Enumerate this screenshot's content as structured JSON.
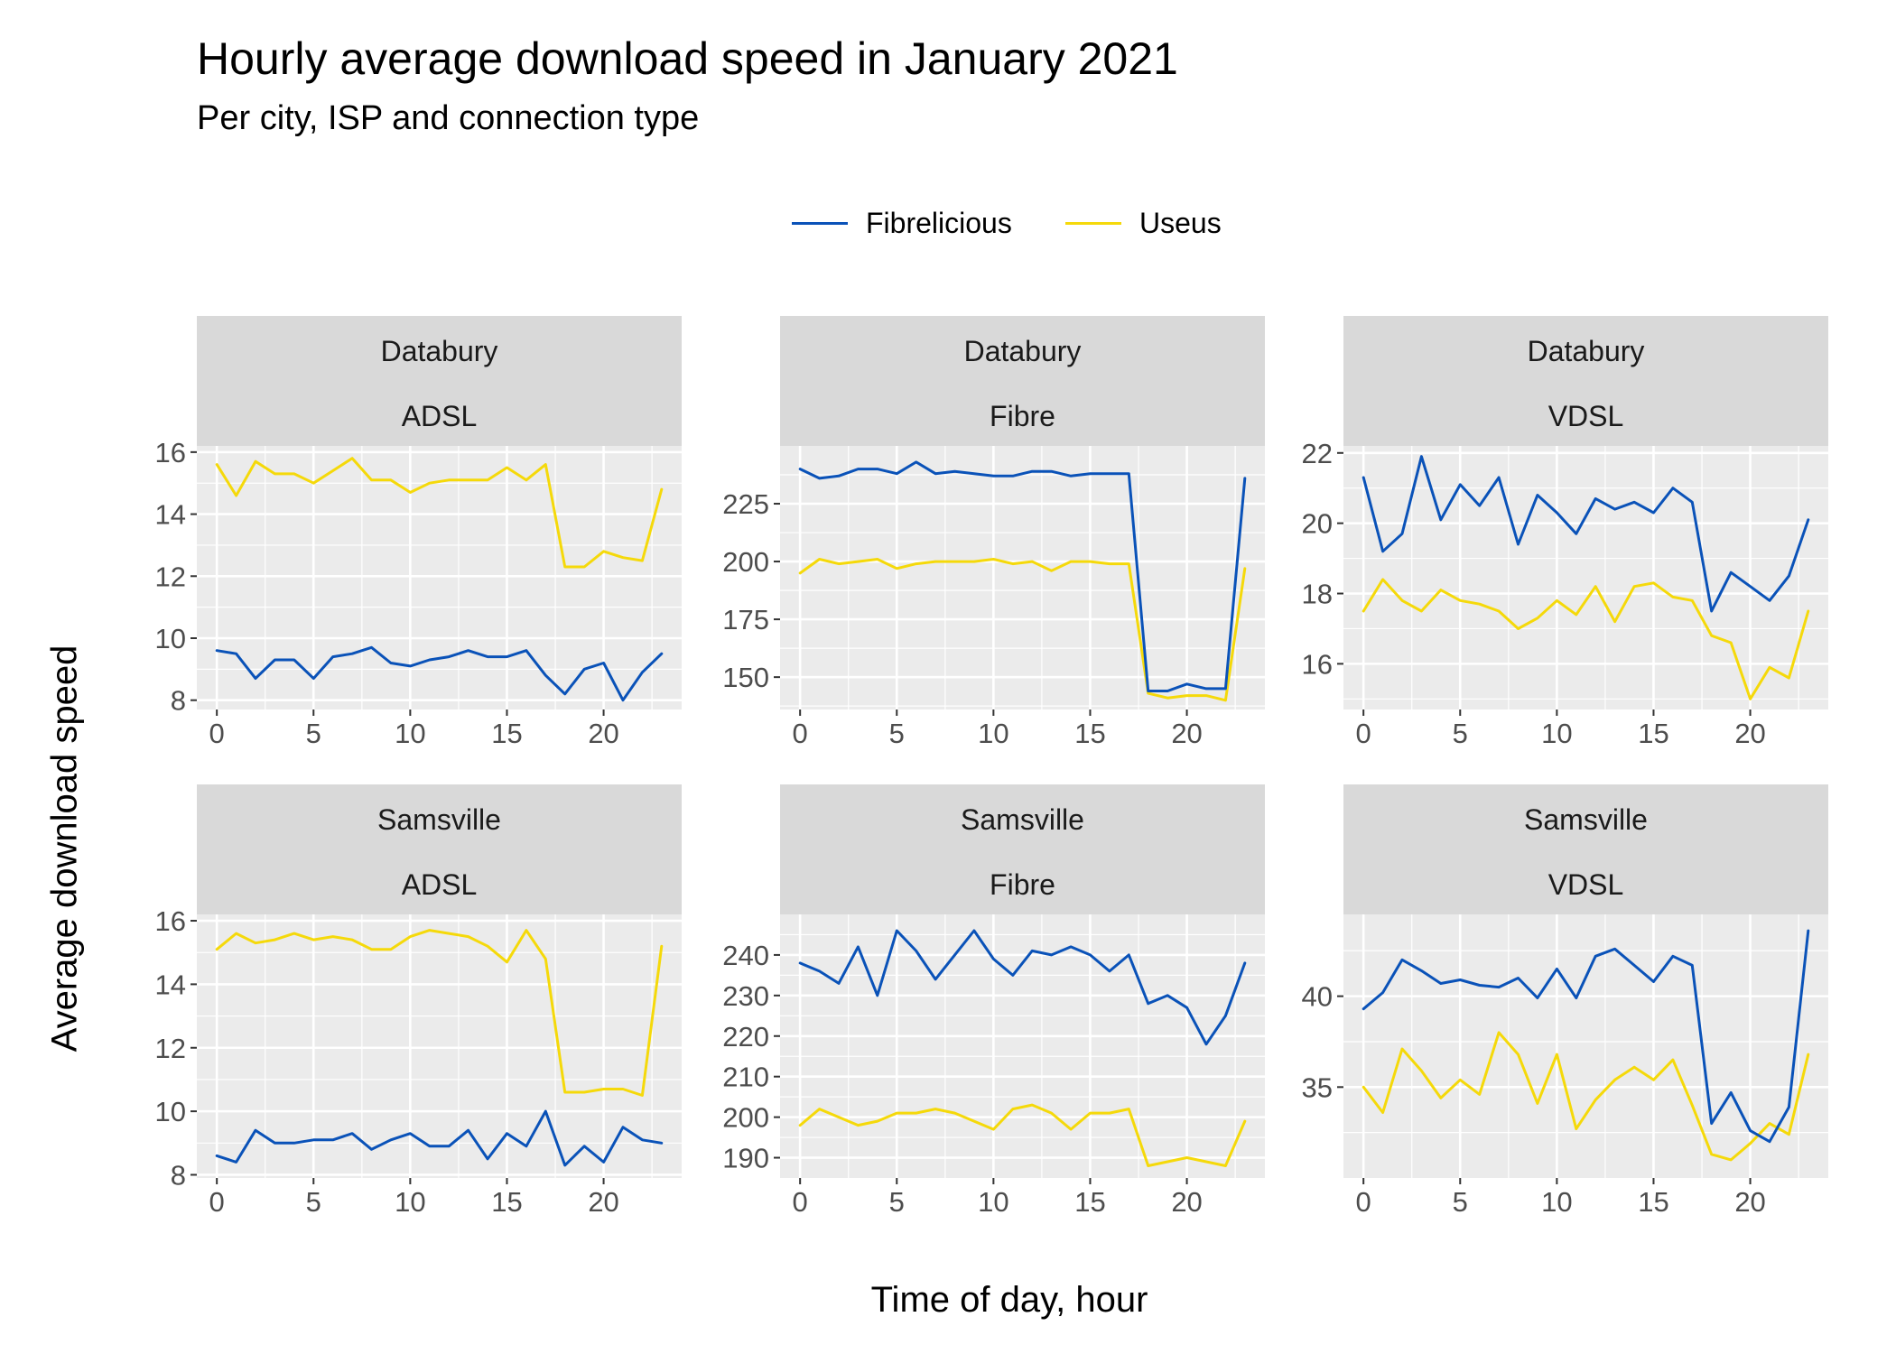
{
  "title": "Hourly average download speed in January 2021",
  "subtitle": "Per city, ISP and connection type",
  "colors": {
    "Fibrelicious": "#0a52b8",
    "Useus": "#f5d90a"
  },
  "legend": [
    {
      "label": "Fibrelicious",
      "color": "#0a52b8"
    },
    {
      "label": "Useus",
      "color": "#f5d90a"
    }
  ],
  "xlabel": "Time of day, hour",
  "ylabel": "Average download speed",
  "chart_data": [
    {
      "type": "line",
      "strip": [
        "Databury",
        "ADSL"
      ],
      "xlim": [
        0,
        23
      ],
      "xticks": [
        0,
        5,
        10,
        15,
        20
      ],
      "ylim": [
        7.7,
        16.2
      ],
      "yticks": [
        8,
        10,
        12,
        14,
        16
      ],
      "x": [
        0,
        1,
        2,
        3,
        4,
        5,
        6,
        7,
        8,
        9,
        10,
        11,
        12,
        13,
        14,
        15,
        16,
        17,
        18,
        19,
        20,
        21,
        22,
        23
      ],
      "series": [
        {
          "name": "Fibrelicious",
          "values": [
            9.6,
            9.5,
            8.7,
            9.3,
            9.3,
            8.7,
            9.4,
            9.5,
            9.7,
            9.2,
            9.1,
            9.3,
            9.4,
            9.6,
            9.4,
            9.4,
            9.6,
            8.8,
            8.2,
            9.0,
            9.2,
            8.0,
            8.9,
            9.5
          ]
        },
        {
          "name": "Useus",
          "values": [
            15.6,
            14.6,
            15.7,
            15.3,
            15.3,
            15.0,
            15.4,
            15.8,
            15.1,
            15.1,
            14.7,
            15.0,
            15.1,
            15.1,
            15.1,
            15.5,
            15.1,
            15.6,
            12.3,
            12.3,
            12.8,
            12.6,
            12.5,
            14.8
          ]
        }
      ]
    },
    {
      "type": "line",
      "strip": [
        "Databury",
        "Fibre"
      ],
      "xlim": [
        0,
        23
      ],
      "xticks": [
        0,
        5,
        10,
        15,
        20
      ],
      "ylim": [
        136,
        250
      ],
      "yticks": [
        150,
        175,
        200,
        225
      ],
      "x": [
        0,
        1,
        2,
        3,
        4,
        5,
        6,
        7,
        8,
        9,
        10,
        11,
        12,
        13,
        14,
        15,
        16,
        17,
        18,
        19,
        20,
        21,
        22,
        23
      ],
      "series": [
        {
          "name": "Fibrelicious",
          "values": [
            240,
            236,
            237,
            240,
            240,
            238,
            243,
            238,
            239,
            238,
            237,
            237,
            239,
            239,
            237,
            238,
            238,
            238,
            144,
            144,
            147,
            145,
            145,
            236
          ]
        },
        {
          "name": "Useus",
          "values": [
            195,
            201,
            199,
            200,
            201,
            197,
            199,
            200,
            200,
            200,
            201,
            199,
            200,
            196,
            200,
            200,
            199,
            199,
            143,
            141,
            142,
            142,
            140,
            197
          ]
        }
      ]
    },
    {
      "type": "line",
      "strip": [
        "Databury",
        "VDSL"
      ],
      "xlim": [
        0,
        23
      ],
      "xticks": [
        0,
        5,
        10,
        15,
        20
      ],
      "ylim": [
        14.7,
        22.2
      ],
      "yticks": [
        16,
        18,
        20,
        22
      ],
      "x": [
        0,
        1,
        2,
        3,
        4,
        5,
        6,
        7,
        8,
        9,
        10,
        11,
        12,
        13,
        14,
        15,
        16,
        17,
        18,
        19,
        20,
        21,
        22,
        23
      ],
      "series": [
        {
          "name": "Fibrelicious",
          "values": [
            21.3,
            19.2,
            19.7,
            21.9,
            20.1,
            21.1,
            20.5,
            21.3,
            19.4,
            20.8,
            20.3,
            19.7,
            20.7,
            20.4,
            20.6,
            20.3,
            21.0,
            20.6,
            17.5,
            18.6,
            18.2,
            17.8,
            18.5,
            20.1
          ]
        },
        {
          "name": "Useus",
          "values": [
            17.5,
            18.4,
            17.8,
            17.5,
            18.1,
            17.8,
            17.7,
            17.5,
            17.0,
            17.3,
            17.8,
            17.4,
            18.2,
            17.2,
            18.2,
            18.3,
            17.9,
            17.8,
            16.8,
            16.6,
            15.0,
            15.9,
            15.6,
            17.5
          ]
        }
      ]
    },
    {
      "type": "line",
      "strip": [
        "Samsville",
        "ADSL"
      ],
      "xlim": [
        0,
        23
      ],
      "xticks": [
        0,
        5,
        10,
        15,
        20
      ],
      "ylim": [
        7.9,
        16.2
      ],
      "yticks": [
        8,
        10,
        12,
        14,
        16
      ],
      "x": [
        0,
        1,
        2,
        3,
        4,
        5,
        6,
        7,
        8,
        9,
        10,
        11,
        12,
        13,
        14,
        15,
        16,
        17,
        18,
        19,
        20,
        21,
        22,
        23
      ],
      "series": [
        {
          "name": "Fibrelicious",
          "values": [
            8.6,
            8.4,
            9.4,
            9.0,
            9.0,
            9.1,
            9.1,
            9.3,
            8.8,
            9.1,
            9.3,
            8.9,
            8.9,
            9.4,
            8.5,
            9.3,
            8.9,
            10.0,
            8.3,
            8.9,
            8.4,
            9.5,
            9.1,
            9.0
          ]
        },
        {
          "name": "Useus",
          "values": [
            15.1,
            15.6,
            15.3,
            15.4,
            15.6,
            15.4,
            15.5,
            15.4,
            15.1,
            15.1,
            15.5,
            15.7,
            15.6,
            15.5,
            15.2,
            14.7,
            15.7,
            14.8,
            10.6,
            10.6,
            10.7,
            10.7,
            10.5,
            15.2
          ]
        }
      ]
    },
    {
      "type": "line",
      "strip": [
        "Samsville",
        "Fibre"
      ],
      "xlim": [
        0,
        23
      ],
      "xticks": [
        0,
        5,
        10,
        15,
        20
      ],
      "ylim": [
        185,
        250
      ],
      "yticks": [
        190,
        200,
        210,
        220,
        230,
        240
      ],
      "x": [
        0,
        1,
        2,
        3,
        4,
        5,
        6,
        7,
        8,
        9,
        10,
        11,
        12,
        13,
        14,
        15,
        16,
        17,
        18,
        19,
        20,
        21,
        22,
        23
      ],
      "series": [
        {
          "name": "Fibrelicious",
          "values": [
            238,
            236,
            233,
            242,
            230,
            246,
            241,
            234,
            240,
            246,
            239,
            235,
            241,
            240,
            242,
            240,
            236,
            240,
            228,
            230,
            227,
            218,
            225,
            238
          ]
        },
        {
          "name": "Useus",
          "values": [
            198,
            202,
            200,
            198,
            199,
            201,
            201,
            202,
            201,
            199,
            197,
            202,
            203,
            201,
            197,
            201,
            201,
            202,
            188,
            189,
            190,
            189,
            188,
            199
          ]
        }
      ]
    },
    {
      "type": "line",
      "strip": [
        "Samsville",
        "VDSL"
      ],
      "xlim": [
        0,
        23
      ],
      "xticks": [
        0,
        5,
        10,
        15,
        20
      ],
      "ylim": [
        30.0,
        44.5
      ],
      "yticks": [
        35,
        40
      ],
      "x": [
        0,
        1,
        2,
        3,
        4,
        5,
        6,
        7,
        8,
        9,
        10,
        11,
        12,
        13,
        14,
        15,
        16,
        17,
        18,
        19,
        20,
        21,
        22,
        23
      ],
      "series": [
        {
          "name": "Fibrelicious",
          "values": [
            39.3,
            40.2,
            42.0,
            41.4,
            40.7,
            40.9,
            40.6,
            40.5,
            41.0,
            39.9,
            41.5,
            39.9,
            42.2,
            42.6,
            41.7,
            40.8,
            42.2,
            41.7,
            33.0,
            34.7,
            32.6,
            32.0,
            33.9,
            43.6
          ]
        },
        {
          "name": "Useus",
          "values": [
            35.0,
            33.6,
            37.1,
            35.9,
            34.4,
            35.4,
            34.6,
            38.0,
            36.8,
            34.1,
            36.8,
            32.7,
            34.3,
            35.4,
            36.1,
            35.4,
            36.5,
            34.0,
            31.3,
            31.0,
            31.9,
            33.0,
            32.4,
            36.8
          ]
        }
      ]
    }
  ]
}
